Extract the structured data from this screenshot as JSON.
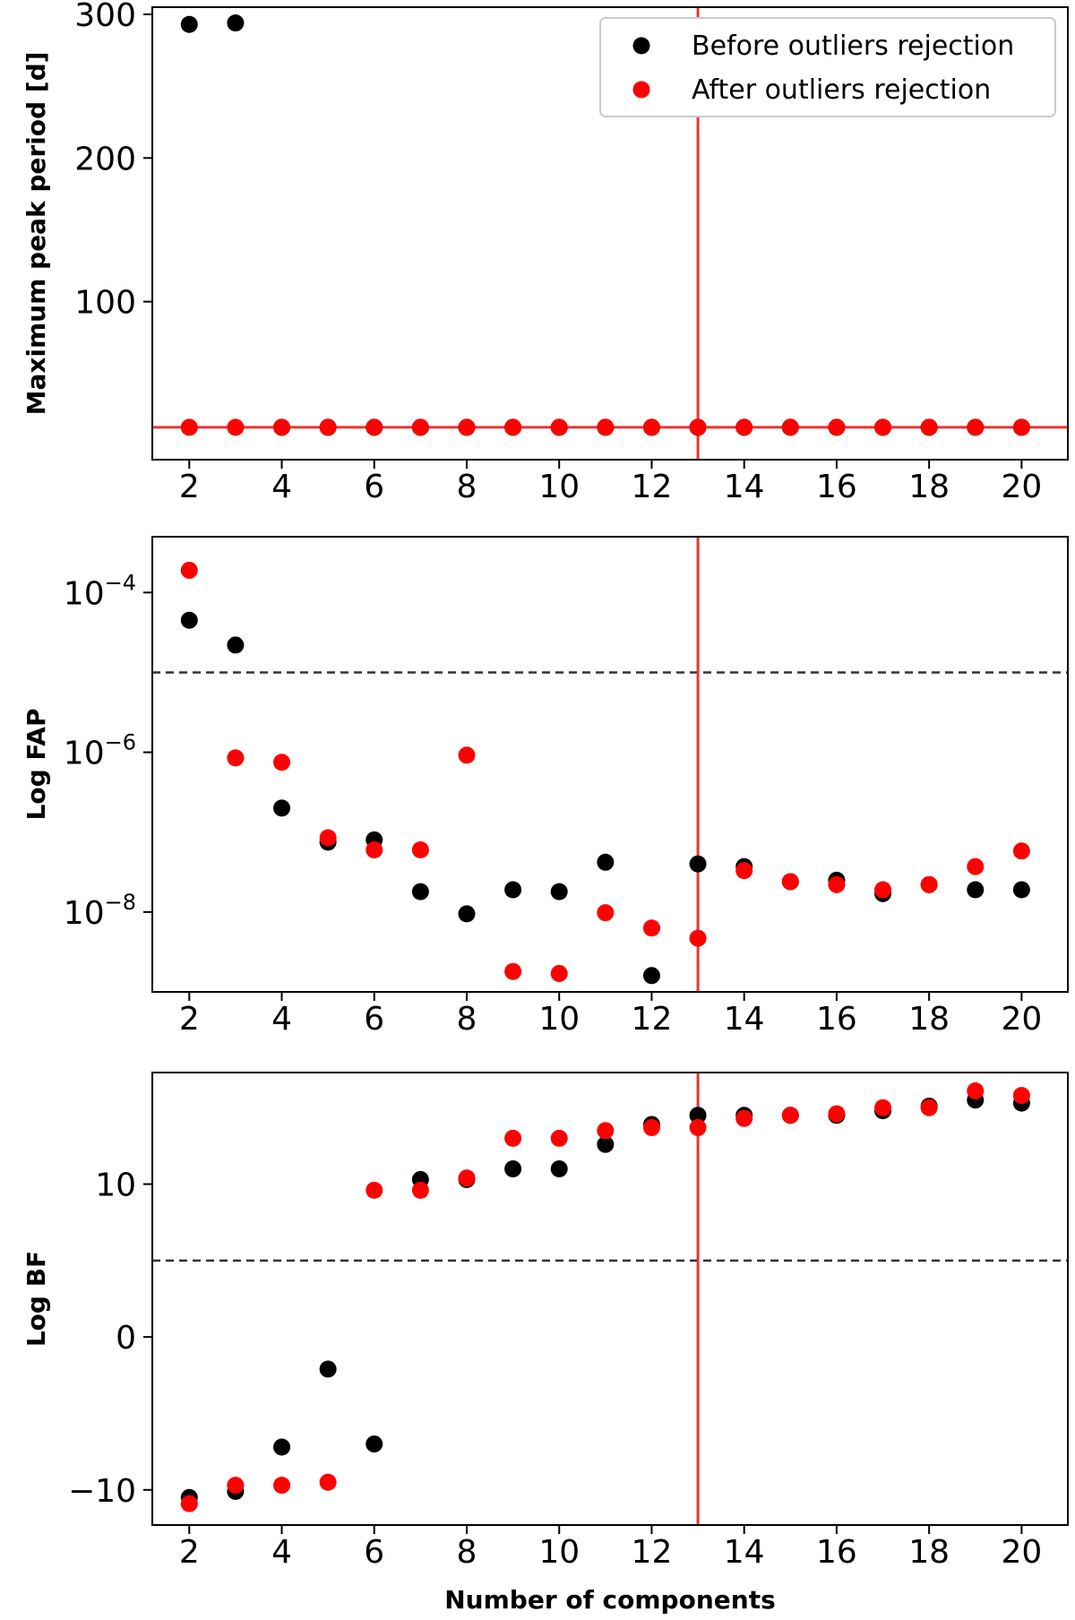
{
  "colors": {
    "before": "#000000",
    "after": "#ff0000",
    "selection_line": "#ee3333",
    "threshold_line": "#333333"
  },
  "legend": {
    "before_label": "Before outliers rejection",
    "after_label": "After outliers rejection",
    "placement": "upper-right"
  },
  "shared_xlabel": "Number of components",
  "chart_data": [
    {
      "type": "scatter",
      "ylabel": "Maximum peak period [d]",
      "yscale": "linear",
      "ylim": [
        -10,
        305
      ],
      "xlim": [
        1.2,
        21.0
      ],
      "xticks": [
        2,
        4,
        6,
        8,
        10,
        12,
        14,
        16,
        18,
        20
      ],
      "yticks": [
        100,
        200,
        300
      ],
      "vline_x": 13,
      "hline_y": 12.5,
      "hline_style": "solid",
      "series": [
        {
          "name": "Before outliers rejection",
          "x": [
            2,
            3,
            4,
            5,
            6,
            7,
            8,
            9,
            10,
            11,
            12,
            13,
            14,
            15,
            16,
            17,
            18,
            19,
            20
          ],
          "y": [
            293,
            294,
            12.5,
            12.5,
            12.5,
            12.5,
            12.5,
            12.5,
            12.5,
            12.5,
            12.5,
            12.5,
            12.5,
            12.5,
            12.5,
            12.5,
            12.5,
            12.5,
            12.5
          ]
        },
        {
          "name": "After outliers rejection",
          "x": [
            2,
            3,
            4,
            5,
            6,
            7,
            8,
            9,
            10,
            11,
            12,
            13,
            14,
            15,
            16,
            17,
            18,
            19,
            20
          ],
          "y": [
            12.5,
            12.5,
            12.5,
            12.5,
            12.5,
            12.5,
            12.5,
            12.5,
            12.5,
            12.5,
            12.5,
            12.5,
            12.5,
            12.5,
            12.5,
            12.5,
            12.5,
            12.5,
            12.5
          ]
        }
      ]
    },
    {
      "type": "scatter",
      "ylabel": "Log FAP",
      "yscale": "log",
      "ylim": [
        1e-09,
        0.0005
      ],
      "xlim": [
        1.2,
        21.0
      ],
      "xticks": [
        2,
        4,
        6,
        8,
        10,
        12,
        14,
        16,
        18,
        20
      ],
      "yticks": [
        1e-08,
        1e-06,
        0.0001
      ],
      "vline_x": 13,
      "hline_y": 1e-05,
      "hline_style": "dashed",
      "series": [
        {
          "name": "Before outliers rejection",
          "x": [
            2,
            3,
            4,
            5,
            6,
            7,
            8,
            9,
            10,
            11,
            12,
            13,
            14,
            15,
            16,
            17,
            18,
            19,
            20
          ],
          "y": [
            4.5e-05,
            2.2e-05,
            2e-07,
            7.5e-08,
            8e-08,
            1.8e-08,
            9.5e-09,
            1.9e-08,
            1.8e-08,
            4.2e-08,
            1.6e-09,
            4e-08,
            3.7e-08,
            2.4e-08,
            2.5e-08,
            1.7e-08,
            2.2e-08,
            1.9e-08,
            1.9e-08
          ]
        },
        {
          "name": "After outliers rejection",
          "x": [
            2,
            3,
            4,
            5,
            6,
            7,
            8,
            9,
            10,
            11,
            12,
            13,
            14,
            15,
            16,
            17,
            18,
            19,
            20
          ],
          "y": [
            0.00019,
            8.5e-07,
            7.5e-07,
            8.5e-08,
            6e-08,
            6e-08,
            9.2e-07,
            1.8e-09,
            1.7e-09,
            9.8e-09,
            6.3e-09,
            4.7e-09,
            3.3e-08,
            2.4e-08,
            2.2e-08,
            1.9e-08,
            2.2e-08,
            3.7e-08,
            5.8e-08
          ]
        }
      ]
    },
    {
      "type": "scatter",
      "ylabel": "Log BF",
      "yscale": "linear",
      "ylim": [
        -12.3,
        17.3
      ],
      "xlim": [
        1.2,
        21.0
      ],
      "xticks": [
        2,
        4,
        6,
        8,
        10,
        12,
        14,
        16,
        18,
        20
      ],
      "yticks": [
        -10,
        0,
        10
      ],
      "vline_x": 13,
      "hline_y": 5,
      "hline_style": "dashed",
      "series": [
        {
          "name": "Before outliers rejection",
          "x": [
            2,
            3,
            4,
            5,
            6,
            7,
            8,
            9,
            10,
            11,
            12,
            13,
            14,
            15,
            16,
            17,
            18,
            19,
            20
          ],
          "y": [
            -10.5,
            -10.1,
            -7.2,
            -2.1,
            -7.0,
            10.3,
            10.3,
            11.0,
            11.0,
            12.6,
            13.9,
            14.5,
            14.5,
            14.5,
            14.5,
            14.8,
            15.1,
            15.5,
            15.3
          ]
        },
        {
          "name": "After outliers rejection",
          "x": [
            2,
            3,
            4,
            5,
            6,
            7,
            8,
            9,
            10,
            11,
            12,
            13,
            14,
            15,
            16,
            17,
            18,
            19,
            20
          ],
          "y": [
            -10.9,
            -9.7,
            -9.7,
            -9.5,
            9.6,
            9.6,
            10.4,
            13.0,
            13.0,
            13.5,
            13.7,
            13.7,
            14.3,
            14.5,
            14.6,
            15.0,
            15.0,
            16.1,
            15.8
          ]
        }
      ]
    }
  ]
}
